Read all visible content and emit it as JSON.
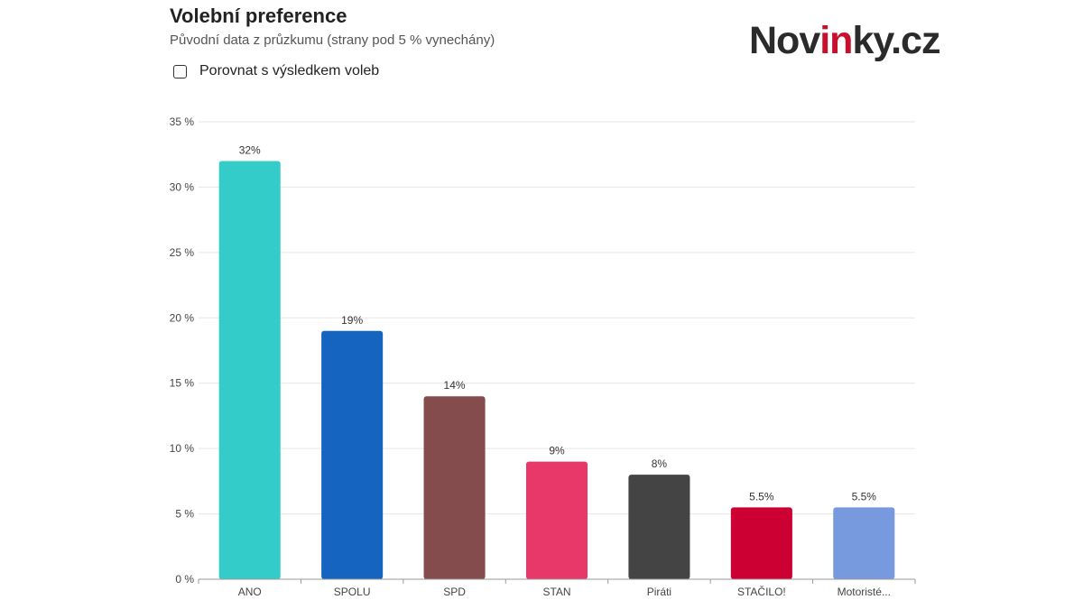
{
  "header": {
    "title": "Volební preference",
    "subtitle": "Původní data z průzkumu (strany pod 5 % vynechány)"
  },
  "logo": {
    "part1": "Nov",
    "part2": "in",
    "part3": "ky.cz",
    "colors": {
      "dark": "#2b2b2b",
      "accent": "#c8102e"
    }
  },
  "toggle": {
    "label": "Porovnat s výsledkem voleb",
    "checked": false
  },
  "chart_data": {
    "type": "bar",
    "title": "",
    "xlabel": "",
    "ylabel": "",
    "ylim": [
      0,
      35
    ],
    "yticks": [
      0,
      5,
      10,
      15,
      20,
      25,
      30,
      35
    ],
    "ytick_suffix": " %",
    "grid": true,
    "categories": [
      "ANO",
      "SPOLU",
      "SPD",
      "STAN",
      "Piráti",
      "STAČILO!",
      "Motoristé..."
    ],
    "values": [
      32,
      19,
      14,
      9,
      8,
      5.5,
      5.5
    ],
    "data_labels": [
      "32%",
      "19%",
      "14%",
      "9%",
      "8%",
      "5.5%",
      "5.5%"
    ],
    "colors": [
      "#33ccc9",
      "#1565c0",
      "#844c4c",
      "#e8386a",
      "#444444",
      "#cc0033",
      "#7799dd"
    ]
  }
}
